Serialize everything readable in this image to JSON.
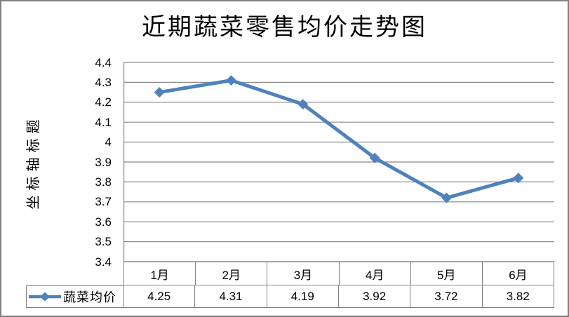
{
  "page": {
    "background_color": "#ffffff",
    "frame_border_color": "#808080"
  },
  "chart_data": {
    "type": "line",
    "title": "近期蔬菜零售均价走势图",
    "y_axis_title": "坐标轴标题",
    "categories": [
      "1月",
      "2月",
      "3月",
      "4月",
      "5月",
      "6月"
    ],
    "series": [
      {
        "name": "蔬菜均价",
        "values": [
          4.25,
          4.31,
          4.19,
          3.92,
          3.72,
          3.82
        ]
      }
    ],
    "cell_values": [
      "4.25",
      "4.31",
      "4.19",
      "3.92",
      "3.72",
      "3.82"
    ],
    "ylim": [
      3.4,
      4.4
    ],
    "ytick_step": 0.1,
    "ytick_labels": [
      "4.4",
      "4.3",
      "4.2",
      "4.1",
      "4",
      "3.9",
      "3.8",
      "3.7",
      "3.6",
      "3.5",
      "3.4"
    ],
    "grid": true,
    "legend_position": "table-left",
    "line_color": "#4F81BD",
    "gridline_color": "#898989",
    "table_border_color": "#808080",
    "text_color": "#000000"
  }
}
